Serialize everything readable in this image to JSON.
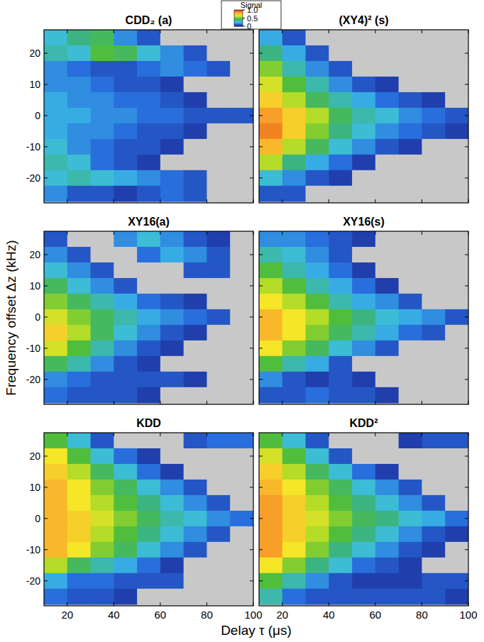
{
  "x_label": "Delay τ (μs)",
  "y_label": "Frequency offset Δz (kHz)",
  "chart_data": [
    {
      "type": "heatmap",
      "title": "CDD₂ (a)",
      "x": [
        15,
        25,
        35,
        45,
        55,
        65,
        75,
        85,
        95
      ],
      "y": [
        25,
        20,
        15,
        10,
        5,
        0,
        -5,
        -10,
        -15,
        -20,
        -25
      ],
      "cells": [
        [
          0.3,
          0.4,
          0.45,
          0.2,
          0.1,
          0,
          0,
          0,
          0
        ],
        [
          0.35,
          0.3,
          0.5,
          0.45,
          0.3,
          0.2,
          0.1,
          0,
          0
        ],
        [
          0.2,
          0.15,
          0.1,
          0.1,
          0.15,
          0.2,
          0.15,
          0.1,
          0
        ],
        [
          0.2,
          0.2,
          0.15,
          0.1,
          0.1,
          0.05,
          0,
          0,
          0
        ],
        [
          0.25,
          0.2,
          0.2,
          0.15,
          0.15,
          0.1,
          0.05,
          0,
          0
        ],
        [
          0.25,
          0.25,
          0.2,
          0.2,
          0.15,
          0.15,
          0.1,
          0.1,
          0.1
        ],
        [
          0.25,
          0.2,
          0.2,
          0.15,
          0.1,
          0.1,
          0.05,
          0,
          0
        ],
        [
          0.3,
          0.2,
          0.15,
          0.1,
          0.1,
          0.05,
          0,
          0,
          0
        ],
        [
          0.35,
          0.3,
          0.15,
          0.1,
          0.05,
          0,
          0,
          0,
          0
        ],
        [
          0.3,
          0.35,
          0.3,
          0.25,
          0.2,
          0.15,
          0.1,
          0,
          0
        ],
        [
          0.2,
          0.1,
          0.1,
          0.05,
          0.1,
          0.15,
          0.1,
          0,
          0
        ]
      ],
      "xlim": [
        10,
        100
      ],
      "ylim": [
        -28,
        27.5
      ],
      "xticks": [
        20,
        40,
        60,
        80,
        100
      ],
      "yticks": [
        -20,
        -10,
        0,
        10,
        20
      ],
      "tick_labels": "y",
      "colorbar": {
        "title": "Signal",
        "range": [
          0,
          1
        ],
        "ticks": [
          0,
          0.5,
          {
            "value": 1,
            "label": "1.0"
          }
        ]
      }
    },
    {
      "type": "heatmap",
      "title": "(XY4)² (s)",
      "x": [
        15,
        25,
        35,
        45,
        55,
        65,
        75,
        85,
        95
      ],
      "y": [
        25,
        20,
        15,
        10,
        5,
        0,
        -5,
        -10,
        -15,
        -20,
        -25
      ],
      "cells": [
        [
          0.25,
          0.1,
          0,
          0,
          0,
          0,
          0,
          0,
          0
        ],
        [
          0.4,
          0.25,
          0.1,
          0,
          0,
          0,
          0,
          0,
          0
        ],
        [
          0.55,
          0.35,
          0.2,
          0.1,
          0,
          0,
          0,
          0,
          0
        ],
        [
          0.65,
          0.5,
          0.35,
          0.2,
          0.1,
          0.05,
          0,
          0,
          0
        ],
        [
          0.75,
          0.6,
          0.45,
          0.35,
          0.25,
          0.15,
          0.1,
          0.05,
          0
        ],
        [
          0.85,
          0.75,
          0.6,
          0.45,
          0.35,
          0.3,
          0.2,
          0.15,
          0.1
        ],
        [
          0.9,
          0.75,
          0.55,
          0.4,
          0.3,
          0.2,
          0.15,
          0.1,
          0.05
        ],
        [
          0.8,
          0.6,
          0.45,
          0.3,
          0.2,
          0.1,
          0.05,
          0,
          0
        ],
        [
          0.6,
          0.4,
          0.25,
          0.15,
          0.05,
          0,
          0,
          0,
          0
        ],
        [
          0.3,
          0.2,
          0.1,
          0.05,
          0,
          0,
          0,
          0,
          0
        ],
        [
          0.1,
          0.1,
          0,
          0,
          0,
          0,
          0,
          0,
          0
        ]
      ],
      "xlim": [
        10,
        100
      ],
      "ylim": [
        -28,
        27.5
      ],
      "xticks": [
        20,
        40,
        60,
        80,
        100
      ],
      "yticks": [
        -20,
        -10,
        0,
        10,
        20
      ],
      "tick_labels": false
    },
    {
      "type": "heatmap",
      "title": "XY16(a)",
      "x": [
        15,
        25,
        35,
        45,
        55,
        65,
        75,
        85,
        95
      ],
      "y": [
        25,
        20,
        15,
        10,
        5,
        0,
        -5,
        -10,
        -15,
        -20,
        -25
      ],
      "cells": [
        [
          0.1,
          0,
          0,
          0.2,
          0.3,
          0.2,
          0.1,
          0.05,
          0
        ],
        [
          0.2,
          0.1,
          0,
          0,
          0.15,
          0.25,
          0.2,
          0.1,
          0
        ],
        [
          0.3,
          0.2,
          0.1,
          0,
          0,
          0,
          0.1,
          0.1,
          0
        ],
        [
          0.45,
          0.3,
          0.2,
          0.1,
          0,
          0,
          0,
          0,
          0
        ],
        [
          0.55,
          0.45,
          0.35,
          0.25,
          0.15,
          0.1,
          0.05,
          0,
          0
        ],
        [
          0.65,
          0.55,
          0.45,
          0.35,
          0.25,
          0.2,
          0.15,
          0.1,
          0
        ],
        [
          0.75,
          0.6,
          0.45,
          0.3,
          0.2,
          0.1,
          0.05,
          0,
          0
        ],
        [
          0.65,
          0.5,
          0.35,
          0.2,
          0.1,
          0.05,
          0,
          0,
          0
        ],
        [
          0.45,
          0.35,
          0.2,
          0.1,
          0.05,
          0,
          0,
          0,
          0
        ],
        [
          0.2,
          0.15,
          0.1,
          0.1,
          0.1,
          0.1,
          0.05,
          0,
          0
        ],
        [
          0.15,
          0.1,
          0.1,
          0.1,
          0.05,
          0,
          0,
          0,
          0
        ]
      ],
      "xlim": [
        10,
        100
      ],
      "ylim": [
        -28,
        27.5
      ],
      "xticks": [
        20,
        40,
        60,
        80,
        100
      ],
      "yticks": [
        -20,
        -10,
        0,
        10,
        20
      ],
      "tick_labels": "y"
    },
    {
      "type": "heatmap",
      "title": "XY16(s)",
      "x": [
        15,
        25,
        35,
        45,
        55,
        65,
        75,
        85,
        95
      ],
      "y": [
        25,
        20,
        15,
        10,
        5,
        0,
        -5,
        -10,
        -15,
        -20,
        -25
      ],
      "cells": [
        [
          0.2,
          0.2,
          0.15,
          0.1,
          0.05,
          0,
          0,
          0,
          0
        ],
        [
          0.35,
          0.3,
          0.2,
          0.1,
          0,
          0,
          0,
          0,
          0
        ],
        [
          0.5,
          0.35,
          0.25,
          0.15,
          0.05,
          0,
          0,
          0,
          0
        ],
        [
          0.6,
          0.5,
          0.35,
          0.25,
          0.15,
          0.05,
          0,
          0,
          0
        ],
        [
          0.7,
          0.6,
          0.5,
          0.35,
          0.25,
          0.2,
          0.1,
          0,
          0
        ],
        [
          0.8,
          0.7,
          0.6,
          0.5,
          0.4,
          0.3,
          0.25,
          0.2,
          0.1
        ],
        [
          0.8,
          0.7,
          0.55,
          0.45,
          0.35,
          0.25,
          0.15,
          0.1,
          0
        ],
        [
          0.7,
          0.55,
          0.45,
          0.3,
          0.2,
          0.1,
          0,
          0,
          0
        ],
        [
          0.5,
          0.35,
          0.25,
          0.1,
          0,
          0,
          0,
          0,
          0
        ],
        [
          0.2,
          0.1,
          0.05,
          0.1,
          0.05,
          0,
          0,
          0,
          0
        ],
        [
          0.1,
          0.1,
          0.15,
          0.1,
          0.1,
          0.05,
          0,
          0,
          0
        ]
      ],
      "xlim": [
        10,
        100
      ],
      "ylim": [
        -28,
        27.5
      ],
      "xticks": [
        20,
        40,
        60,
        80,
        100
      ],
      "yticks": [
        -20,
        -10,
        0,
        10,
        20
      ],
      "tick_labels": false
    },
    {
      "type": "heatmap",
      "title": "KDD",
      "x": [
        15,
        25,
        35,
        45,
        55,
        65,
        75,
        85,
        95
      ],
      "y": [
        25,
        20,
        15,
        10,
        5,
        0,
        -5,
        -10,
        -15,
        -20,
        -25
      ],
      "cells": [
        [
          0.5,
          0.3,
          0.1,
          0,
          0,
          0,
          0.1,
          0.15,
          0.15
        ],
        [
          0.7,
          0.5,
          0.3,
          0.15,
          0.05,
          0,
          0,
          0,
          0
        ],
        [
          0.75,
          0.6,
          0.45,
          0.3,
          0.15,
          0.05,
          0,
          0,
          0
        ],
        [
          0.8,
          0.7,
          0.55,
          0.45,
          0.3,
          0.2,
          0.1,
          0,
          0
        ],
        [
          0.8,
          0.7,
          0.6,
          0.5,
          0.4,
          0.3,
          0.2,
          0.1,
          0
        ],
        [
          0.8,
          0.75,
          0.65,
          0.55,
          0.45,
          0.35,
          0.3,
          0.2,
          0.15
        ],
        [
          0.8,
          0.75,
          0.6,
          0.5,
          0.4,
          0.3,
          0.2,
          0.1,
          0
        ],
        [
          0.8,
          0.7,
          0.55,
          0.45,
          0.3,
          0.2,
          0.1,
          0,
          0
        ],
        [
          0.6,
          0.45,
          0.35,
          0.25,
          0.15,
          0.05,
          0,
          0,
          0
        ],
        [
          0.25,
          0.15,
          0.15,
          0.1,
          0.1,
          0.1,
          0,
          0,
          0
        ],
        [
          0.15,
          0.1,
          0.1,
          0.05,
          0,
          0,
          0,
          0,
          0
        ]
      ],
      "xlim": [
        10,
        100
      ],
      "ylim": [
        -28,
        27.5
      ],
      "xticks": [
        20,
        40,
        60,
        80,
        100
      ],
      "yticks": [
        -20,
        -10,
        0,
        10,
        20
      ],
      "tick_labels": true
    },
    {
      "type": "heatmap",
      "title": "KDD²",
      "x": [
        15,
        25,
        35,
        45,
        55,
        65,
        75,
        85,
        95
      ],
      "y": [
        25,
        20,
        15,
        10,
        5,
        0,
        -5,
        -10,
        -15,
        -20,
        -25
      ],
      "cells": [
        [
          0.5,
          0.3,
          0.1,
          0,
          0,
          0,
          0.05,
          0.1,
          0.1
        ],
        [
          0.65,
          0.5,
          0.3,
          0.1,
          0,
          0,
          0,
          0,
          0
        ],
        [
          0.75,
          0.6,
          0.45,
          0.3,
          0.15,
          0.05,
          0,
          0,
          0
        ],
        [
          0.8,
          0.7,
          0.55,
          0.45,
          0.3,
          0.2,
          0.1,
          0,
          0
        ],
        [
          0.85,
          0.75,
          0.6,
          0.5,
          0.4,
          0.3,
          0.2,
          0.1,
          0
        ],
        [
          0.85,
          0.75,
          0.65,
          0.55,
          0.45,
          0.4,
          0.3,
          0.25,
          0.15
        ],
        [
          0.85,
          0.75,
          0.6,
          0.5,
          0.4,
          0.3,
          0.2,
          0.1,
          0.05
        ],
        [
          0.85,
          0.7,
          0.55,
          0.4,
          0.3,
          0.2,
          0.1,
          0.05,
          0
        ],
        [
          0.7,
          0.55,
          0.4,
          0.3,
          0.15,
          0.1,
          0.05,
          0,
          0
        ],
        [
          0.5,
          0.35,
          0.2,
          0.1,
          0.05,
          0.05,
          0.05,
          0.1,
          0.1
        ],
        [
          0.35,
          0.15,
          0.1,
          0.1,
          0.1,
          0.1,
          0.1,
          0.1,
          0.05
        ]
      ],
      "xlim": [
        10,
        100
      ],
      "ylim": [
        -28,
        27.5
      ],
      "xticks": [
        20,
        40,
        60,
        80,
        100
      ],
      "yticks": [
        -20,
        -10,
        0,
        10,
        20
      ],
      "tick_labels": "x"
    }
  ]
}
